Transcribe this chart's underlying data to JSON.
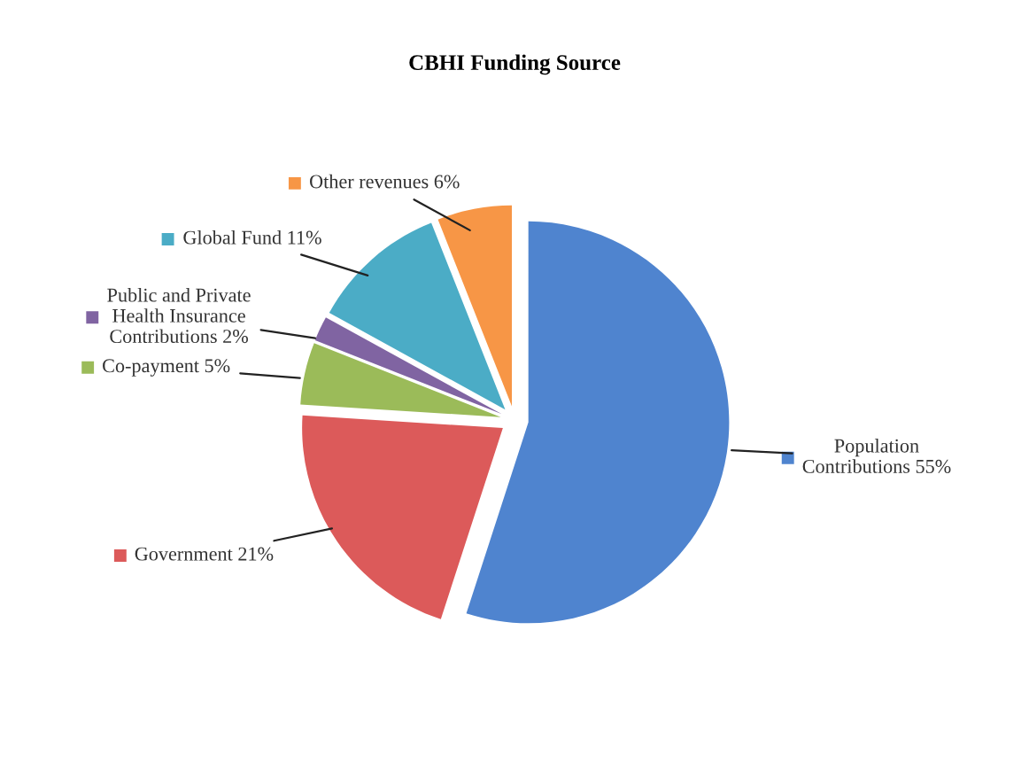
{
  "chart_data": {
    "type": "pie",
    "title": "CBHI Funding Source",
    "categories": [
      "Population\nContributions",
      "Government",
      "Co-payment",
      "Public and Private\nHealth Insurance\nContributions",
      "Global Fund",
      "Other revenues"
    ],
    "values": [
      55,
      21,
      5,
      2,
      11,
      6
    ],
    "value_labels": [
      "55%",
      "21%",
      "5%",
      "2%",
      "11%",
      "6%"
    ],
    "colors": [
      "#4f84cf",
      "#dc5a5a",
      "#9bbb59",
      "#8064a2",
      "#4bacc6",
      "#f79646"
    ],
    "legend": "top right"
  }
}
